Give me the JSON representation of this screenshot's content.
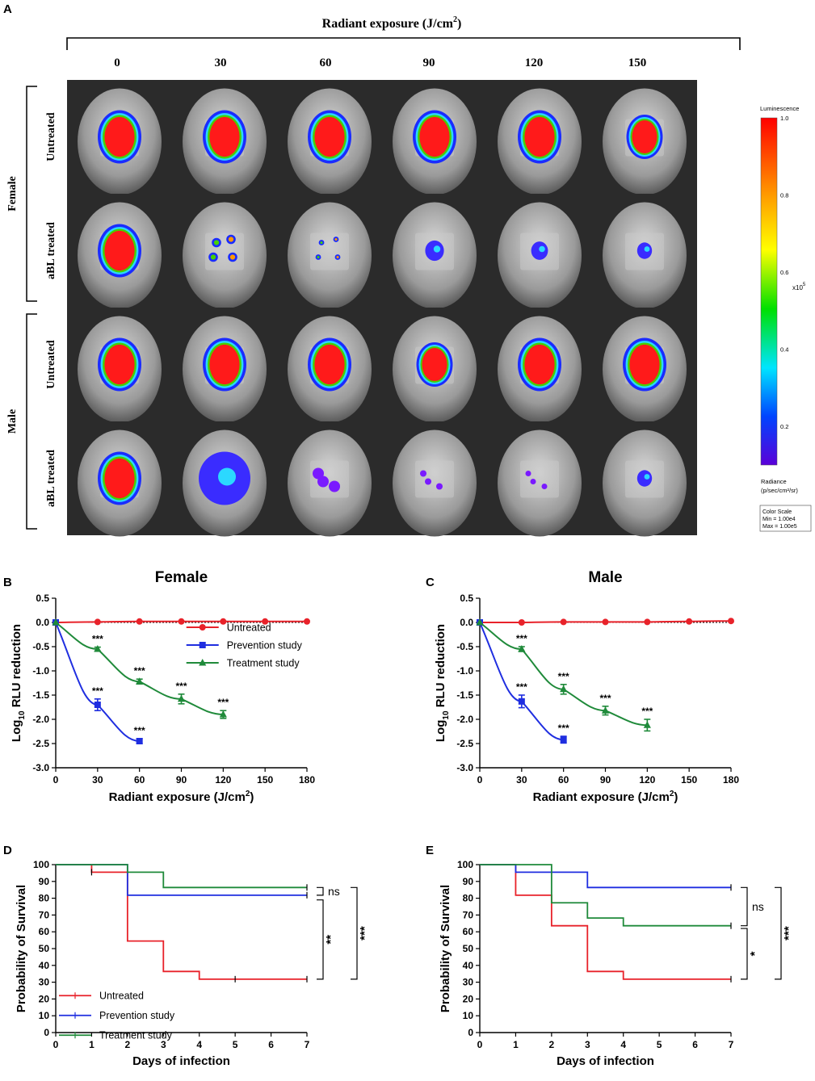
{
  "panel_a": {
    "label": "A",
    "header": "Radiant exposure (J/cm",
    "header_sup": "2",
    "header_close": ")",
    "columns": [
      "0",
      "30",
      "60",
      "90",
      "120",
      "150"
    ],
    "groups": [
      {
        "name": "Female",
        "rows": [
          "Untreated",
          "aBL treated"
        ]
      },
      {
        "name": "Male",
        "rows": [
          "Untreated",
          "aBL treated"
        ]
      }
    ],
    "colorbar": {
      "title": "Luminescence",
      "ticks": [
        "1.0",
        "0.8",
        "0.6",
        "0.4",
        "0.2"
      ],
      "multiplier": "x10",
      "multiplier_exp": "5",
      "unit_line1": "Radiance",
      "unit_line2": "(p/sec/cm²/sr)",
      "scale_title": "Color Scale",
      "scale_min": "Min = 1.00e4",
      "scale_max": "Max = 1.00e5"
    },
    "spots": [
      [
        {
          "s": 3,
          "c": "red"
        },
        {
          "s": 3,
          "c": "red"
        },
        {
          "s": 3,
          "c": "red"
        },
        {
          "s": 3,
          "c": "red"
        },
        {
          "s": 3,
          "c": "red"
        },
        {
          "s": 2.5,
          "c": "red"
        }
      ],
      [
        {
          "s": 3,
          "c": "red"
        },
        {
          "s": 1.2,
          "c": "mixed"
        },
        {
          "s": 0.6,
          "c": "mixed"
        },
        {
          "s": 0.3,
          "c": "blue"
        },
        {
          "s": 0.2,
          "c": "blue"
        },
        {
          "s": 0.1,
          "c": "blue"
        }
      ],
      [
        {
          "s": 3,
          "c": "red"
        },
        {
          "s": 3,
          "c": "red"
        },
        {
          "s": 3,
          "c": "red"
        },
        {
          "s": 2.5,
          "c": "red"
        },
        {
          "s": 3,
          "c": "red"
        },
        {
          "s": 3,
          "c": "red"
        }
      ],
      [
        {
          "s": 3,
          "c": "red"
        },
        {
          "s": 2,
          "c": "blue"
        },
        {
          "s": 1,
          "c": "purple"
        },
        {
          "s": 0.4,
          "c": "purple"
        },
        {
          "s": 0.3,
          "c": "purple"
        },
        {
          "s": 0.1,
          "c": "blue"
        }
      ]
    ]
  },
  "chart_data": [
    {
      "panel": "B",
      "type": "line",
      "title": "Female",
      "xlabel": "Radiant exposure (J/cm",
      "xlabel_sup": "2",
      "xlabel_close": ")",
      "ylabel_pre": "Log",
      "ylabel_sub": "10",
      "ylabel_post": " RLU reduction",
      "xlim": [
        0,
        180
      ],
      "ylim": [
        -3.0,
        0.5
      ],
      "xticks": [
        0,
        30,
        60,
        90,
        120,
        150,
        180
      ],
      "yticks": [
        "0.5",
        "0.0",
        "-0.5",
        "-1.0",
        "-1.5",
        "-2.0",
        "-2.5",
        "-3.0"
      ],
      "legend": "right",
      "series": [
        {
          "name": "Untreated",
          "color": "#e8222a",
          "marker": "circle",
          "x": [
            0,
            30,
            60,
            90,
            120,
            150,
            180
          ],
          "y": [
            0,
            0.01,
            0.02,
            0.02,
            0.02,
            0.02,
            0.02
          ],
          "err": [
            0,
            0,
            0,
            0,
            0,
            0,
            0
          ],
          "sig": [
            "",
            "",
            "",
            "",
            "",
            "",
            ""
          ]
        },
        {
          "name": "Prevention study",
          "color": "#1f2ee0",
          "marker": "square",
          "x": [
            0,
            30,
            60
          ],
          "y": [
            0,
            -1.7,
            -2.45
          ],
          "err": [
            0,
            0.12,
            0.05
          ],
          "sig": [
            "",
            "***",
            "***"
          ]
        },
        {
          "name": "Treatment study",
          "color": "#1f8a3a",
          "marker": "triangle",
          "x": [
            0,
            30,
            60,
            90,
            120
          ],
          "y": [
            0,
            -0.55,
            -1.22,
            -1.58,
            -1.9
          ],
          "err": [
            0,
            0.04,
            0.05,
            0.1,
            0.08
          ],
          "sig": [
            "",
            "***",
            "***",
            "***",
            "***"
          ]
        }
      ]
    },
    {
      "panel": "C",
      "type": "line",
      "title": "Male",
      "xlabel": "Radiant exposure (J/cm",
      "xlabel_sup": "2",
      "xlabel_close": ")",
      "ylabel_pre": "Log",
      "ylabel_sub": "10",
      "ylabel_post": " RLU reduction",
      "xlim": [
        0,
        180
      ],
      "ylim": [
        -3.0,
        0.5
      ],
      "xticks": [
        0,
        30,
        60,
        90,
        120,
        150,
        180
      ],
      "yticks": [
        "0.5",
        "0.0",
        "-0.5",
        "-1.0",
        "-1.5",
        "-2.0",
        "-2.5",
        "-3.0"
      ],
      "legend": "none",
      "series": [
        {
          "name": "Untreated",
          "color": "#e8222a",
          "marker": "circle",
          "x": [
            0,
            30,
            60,
            90,
            120,
            150,
            180
          ],
          "y": [
            0,
            0,
            0.01,
            0.01,
            0.01,
            0.02,
            0.03
          ],
          "err": [
            0,
            0,
            0,
            0,
            0,
            0,
            0
          ],
          "sig": [
            "",
            "",
            "",
            "",
            "",
            "",
            ""
          ]
        },
        {
          "name": "Prevention study",
          "color": "#1f2ee0",
          "marker": "square",
          "x": [
            0,
            30,
            60
          ],
          "y": [
            0,
            -1.63,
            -2.42
          ],
          "err": [
            0,
            0.13,
            0.07
          ],
          "sig": [
            "",
            "***",
            "***"
          ]
        },
        {
          "name": "Treatment study",
          "color": "#1f8a3a",
          "marker": "triangle",
          "x": [
            0,
            30,
            60,
            90,
            120
          ],
          "y": [
            0,
            -0.55,
            -1.38,
            -1.82,
            -2.12
          ],
          "err": [
            0,
            0.05,
            0.1,
            0.09,
            0.12
          ],
          "sig": [
            "",
            "***",
            "***",
            "***",
            "***"
          ]
        }
      ]
    },
    {
      "panel": "D",
      "type": "line",
      "title": "",
      "xlabel": "Days of infection",
      "ylabel": "Probability of Survival",
      "xlim": [
        0,
        7
      ],
      "ylim": [
        0,
        100
      ],
      "xticks": [
        0,
        1,
        2,
        3,
        4,
        5,
        6,
        7
      ],
      "yticks": [
        0,
        10,
        20,
        30,
        40,
        50,
        60,
        70,
        80,
        90,
        100
      ],
      "legend": "bottom-left",
      "series": [
        {
          "name": "Untreated",
          "color": "#e8222a",
          "steps": [
            [
              0,
              100
            ],
            [
              1,
              95.5
            ],
            [
              2,
              54.5
            ],
            [
              3,
              36.4
            ],
            [
              4,
              31.8
            ],
            [
              7,
              31.8
            ]
          ],
          "censor": [
            [
              1,
              95.5
            ],
            [
              5,
              31.8
            ],
            [
              7,
              31.8
            ]
          ]
        },
        {
          "name": "Prevention study",
          "color": "#1f2ee0",
          "steps": [
            [
              0,
              100
            ],
            [
              2,
              81.8
            ],
            [
              7,
              81.8
            ]
          ],
          "censor": [
            [
              7,
              81.8
            ]
          ]
        },
        {
          "name": "Treatment study",
          "color": "#1f8a3a",
          "steps": [
            [
              0,
              100
            ],
            [
              2,
              95.5
            ],
            [
              3,
              86.4
            ],
            [
              7,
              86.4
            ]
          ],
          "censor": [
            [
              7,
              86.4
            ]
          ]
        }
      ],
      "brackets": [
        {
          "top": 86.4,
          "bottom": 81.8,
          "label": "ns",
          "level": 1
        },
        {
          "top": 79,
          "bottom": 31.8,
          "label": "**",
          "level": 1
        },
        {
          "top": 86.4,
          "bottom": 31.8,
          "label": "***",
          "level": 2
        }
      ]
    },
    {
      "panel": "E",
      "type": "line",
      "title": "",
      "xlabel": "Days of infection",
      "ylabel": "Probability of Survival",
      "xlim": [
        0,
        7
      ],
      "ylim": [
        0,
        100
      ],
      "xticks": [
        0,
        1,
        2,
        3,
        4,
        5,
        6,
        7
      ],
      "yticks": [
        0,
        10,
        20,
        30,
        40,
        50,
        60,
        70,
        80,
        90,
        100
      ],
      "legend": "none",
      "series": [
        {
          "name": "Untreated",
          "color": "#e8222a",
          "steps": [
            [
              0,
              100
            ],
            [
              1,
              81.8
            ],
            [
              2,
              63.6
            ],
            [
              3,
              36.4
            ],
            [
              4,
              31.8
            ],
            [
              7,
              31.8
            ]
          ],
          "censor": [
            [
              7,
              31.8
            ]
          ]
        },
        {
          "name": "Prevention study",
          "color": "#1f2ee0",
          "steps": [
            [
              0,
              100
            ],
            [
              1,
              95.5
            ],
            [
              3,
              86.4
            ],
            [
              7,
              86.4
            ]
          ],
          "censor": [
            [
              7,
              86.4
            ]
          ]
        },
        {
          "name": "Treatment study",
          "color": "#1f8a3a",
          "steps": [
            [
              0,
              100
            ],
            [
              2,
              77.3
            ],
            [
              3,
              68.2
            ],
            [
              4,
              63.6
            ],
            [
              7,
              63.6
            ]
          ],
          "censor": [
            [
              7,
              63.6
            ]
          ]
        }
      ],
      "brackets": [
        {
          "top": 86.4,
          "bottom": 63.6,
          "label": "ns",
          "level": 1
        },
        {
          "top": 62,
          "bottom": 31.8,
          "label": "*",
          "level": 1
        },
        {
          "top": 86.4,
          "bottom": 31.8,
          "label": "***",
          "level": 2
        }
      ]
    }
  ]
}
